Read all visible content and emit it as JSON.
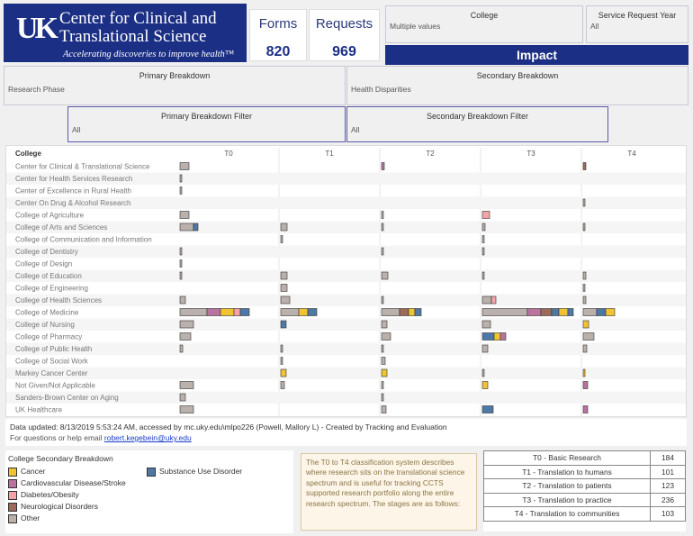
{
  "header": {
    "logo_mark": "UK",
    "title_line1": "Center for Clinical and",
    "title_line2": "Translational Science",
    "tagline": "Accelerating discoveries to improve health™",
    "forms_label": "Forms",
    "forms_value": "820",
    "requests_label": "Requests",
    "requests_value": "969",
    "impact_label": "Impact",
    "brand_color": "#1b2f84"
  },
  "filters": {
    "college": {
      "title": "College",
      "value": "Multiple values"
    },
    "service_year": {
      "title": "Service Request Year",
      "value": "All"
    },
    "primary_breakdown": {
      "title": "Primary Breakdown",
      "value": "Research Phase"
    },
    "secondary_breakdown": {
      "title": "Secondary Breakdown",
      "value": "Health Disparities"
    },
    "primary_filter": {
      "title": "Primary Breakdown Filter",
      "value": "All"
    },
    "secondary_filter": {
      "title": "Secondary Breakdown Filter",
      "value": "All"
    }
  },
  "chart_data": {
    "type": "bar",
    "row_header": "College",
    "columns": [
      "T0",
      "T1",
      "T2",
      "T3",
      "T4"
    ],
    "colleges": [
      "Center for Clinical & Translational Science",
      "Center for Health Services Research",
      "Center of Excellence in Rural Health",
      "Center On Drug & Alcohol Research",
      "College of Agriculture",
      "College of Arts and Sciences",
      "College of Communication and Information",
      "College of Dentistry",
      "College of Design",
      "College of Education",
      "College of Engineering",
      "College of Health Sciences",
      "College of Medicine",
      "College of Nursing",
      "College of Pharmacy",
      "College of Public Health",
      "College of Social Work",
      "Markey Cancer Center",
      "Not Given/Not Applicable",
      "Sanders-Brown Center on Aging",
      "UK Healthcare"
    ],
    "categories": [
      "Cancer",
      "Cardiovascular Disease/Stroke",
      "Diabetes/Obesity",
      "Neurological Disorders",
      "Other",
      "Substance Use Disorder"
    ],
    "colors": {
      "Cancer": "#f1c232",
      "Cardiovascular Disease/Stroke": "#b9739f",
      "Diabetes/Obesity": "#f4a3a8",
      "Neurological Disorders": "#9c6b5a",
      "Other": "#bab0ac",
      "Substance Use Disorder": "#4e79a7"
    },
    "data": {
      "T0": [
        [
          {
            "c": "Other",
            "v": 1
          }
        ],
        [
          {
            "c": "Other",
            "v": 0.2
          }
        ],
        [
          {
            "c": "Other",
            "v": 0.2
          }
        ],
        [],
        [
          {
            "c": "Other",
            "v": 1
          }
        ],
        [
          {
            "c": "Other",
            "v": 1.5
          },
          {
            "c": "Substance Use Disorder",
            "v": 0.5
          }
        ],
        [],
        [
          {
            "c": "Other",
            "v": 0.2
          }
        ],
        [
          {
            "c": "Other",
            "v": 0.2
          }
        ],
        [
          {
            "c": "Other",
            "v": 0.2
          }
        ],
        [],
        [
          {
            "c": "Other",
            "v": 0.6
          }
        ],
        [
          {
            "c": "Other",
            "v": 3
          },
          {
            "c": "Cardiovascular Disease/Stroke",
            "v": 1.5
          },
          {
            "c": "Cancer",
            "v": 1.5
          },
          {
            "c": "Diabetes/Obesity",
            "v": 0.7
          },
          {
            "c": "Substance Use Disorder",
            "v": 1
          }
        ],
        [
          {
            "c": "Other",
            "v": 1.5
          }
        ],
        [
          {
            "c": "Other",
            "v": 1.2
          }
        ],
        [
          {
            "c": "Other",
            "v": 0.3
          }
        ],
        [],
        [],
        [
          {
            "c": "Other",
            "v": 1.5
          }
        ],
        [
          {
            "c": "Other",
            "v": 0.6
          }
        ],
        [
          {
            "c": "Other",
            "v": 1.5
          }
        ]
      ],
      "T1": [
        [],
        [],
        [],
        [],
        [],
        [
          {
            "c": "Other",
            "v": 0.7
          }
        ],
        [
          {
            "c": "Other",
            "v": 0.2
          }
        ],
        [],
        [],
        [
          {
            "c": "Other",
            "v": 0.7
          }
        ],
        [
          {
            "c": "Other",
            "v": 0.7
          }
        ],
        [
          {
            "c": "Other",
            "v": 1
          }
        ],
        [
          {
            "c": "Other",
            "v": 2
          },
          {
            "c": "Cancer",
            "v": 1
          },
          {
            "c": "Substance Use Disorder",
            "v": 1
          }
        ],
        [
          {
            "c": "Substance Use Disorder",
            "v": 0.6
          }
        ],
        [],
        [
          {
            "c": "Other",
            "v": 0.2
          }
        ],
        [
          {
            "c": "Other",
            "v": 0.2
          }
        ],
        [
          {
            "c": "Cancer",
            "v": 0.6
          }
        ],
        [
          {
            "c": "Other",
            "v": 0.4
          }
        ],
        [],
        []
      ],
      "T2": [
        [
          {
            "c": "Cardiovascular Disease/Stroke",
            "v": 0.3
          }
        ],
        [],
        [],
        [],
        [
          {
            "c": "Other",
            "v": 0.2
          }
        ],
        [
          {
            "c": "Other",
            "v": 0.2
          }
        ],
        [],
        [
          {
            "c": "Other",
            "v": 0.2
          }
        ],
        [],
        [
          {
            "c": "Other",
            "v": 0.7
          }
        ],
        [],
        [
          {
            "c": "Other",
            "v": 0.2
          }
        ],
        [
          {
            "c": "Other",
            "v": 2
          },
          {
            "c": "Neurological Disorders",
            "v": 1
          },
          {
            "c": "Cancer",
            "v": 0.7
          },
          {
            "c": "Substance Use Disorder",
            "v": 0.7
          }
        ],
        [
          {
            "c": "Other",
            "v": 0.6
          }
        ],
        [
          {
            "c": "Other",
            "v": 1
          }
        ],
        [
          {
            "c": "Other",
            "v": 0.2
          }
        ],
        [
          {
            "c": "Other",
            "v": 0.4
          }
        ],
        [
          {
            "c": "Cancer",
            "v": 0.6
          }
        ],
        [
          {
            "c": "Other",
            "v": 0.2
          }
        ],
        [
          {
            "c": "Other",
            "v": 0.2
          }
        ],
        [
          {
            "c": "Other",
            "v": 0.5
          }
        ]
      ],
      "T3": [
        [],
        [],
        [],
        [],
        [
          {
            "c": "Diabetes/Obesity",
            "v": 0.8
          }
        ],
        [
          {
            "c": "Other",
            "v": 0.3
          }
        ],
        [
          {
            "c": "Other",
            "v": 0.2
          }
        ],
        [
          {
            "c": "Other",
            "v": 0.2
          }
        ],
        [],
        [
          {
            "c": "Other",
            "v": 0.2
          }
        ],
        [],
        [
          {
            "c": "Other",
            "v": 1
          },
          {
            "c": "Diabetes/Obesity",
            "v": 0.5
          }
        ],
        [
          {
            "c": "Other",
            "v": 5
          },
          {
            "c": "Cardiovascular Disease/Stroke",
            "v": 1.5
          },
          {
            "c": "Neurological Disorders",
            "v": 1.2
          },
          {
            "c": "Substance Use Disorder",
            "v": 0.8
          },
          {
            "c": "Cancer",
            "v": 1
          },
          {
            "c": "Substance Use Disorder",
            "v": 0.6
          }
        ],
        [
          {
            "c": "Other",
            "v": 0.9
          }
        ],
        [
          {
            "c": "Substance Use Disorder",
            "v": 1.3
          },
          {
            "c": "Cancer",
            "v": 0.7
          },
          {
            "c": "Cardiovascular Disease/Stroke",
            "v": 0.6
          }
        ],
        [
          {
            "c": "Other",
            "v": 0.6
          }
        ],
        [],
        [
          {
            "c": "Other",
            "v": 0.2
          }
        ],
        [
          {
            "c": "Cancer",
            "v": 0.6
          }
        ],
        [],
        [
          {
            "c": "Substance Use Disorder",
            "v": 1.2
          }
        ]
      ],
      "T4": [
        [
          {
            "c": "Neurological Disorders",
            "v": 0.3
          }
        ],
        [],
        [],
        [
          {
            "c": "Other",
            "v": 0.2
          }
        ],
        [],
        [
          {
            "c": "Other",
            "v": 0.2
          }
        ],
        [],
        [],
        [],
        [
          {
            "c": "Other",
            "v": 0.3
          }
        ],
        [
          {
            "c": "Other",
            "v": 0.2
          }
        ],
        [
          {
            "c": "Other",
            "v": 0.3
          }
        ],
        [
          {
            "c": "Other",
            "v": 1.5
          },
          {
            "c": "Substance Use Disorder",
            "v": 1
          },
          {
            "c": "Cancer",
            "v": 1
          }
        ],
        [
          {
            "c": "Cancer",
            "v": 0.6
          }
        ],
        [
          {
            "c": "Other",
            "v": 1.2
          }
        ],
        [
          {
            "c": "Other",
            "v": 0.4
          }
        ],
        [],
        [
          {
            "c": "Cancer",
            "v": 0.2
          }
        ],
        [
          {
            "c": "Cardiovascular Disease/Stroke",
            "v": 0.5
          }
        ],
        [],
        [
          {
            "c": "Cardiovascular Disease/Stroke",
            "v": 0.5
          }
        ]
      ]
    }
  },
  "footer": {
    "line1": "Data updated: 8/13/2019 5:53:24 AM, accessed by mc.uky.edu\\mlpo226 (Powell, Mallory L) - Created by Tracking and Evaluation",
    "line2_prefix": "For questions or help email ",
    "email": "robert.kegebein@uky.edu"
  },
  "legend": {
    "title": "College Secondary Breakdown",
    "items": [
      {
        "label": "Cancer",
        "color": "#f1c232"
      },
      {
        "label": "Cardiovascular Disease/Stroke",
        "color": "#b9739f"
      },
      {
        "label": "Diabetes/Obesity",
        "color": "#f4a3a8"
      },
      {
        "label": "Neurological Disorders",
        "color": "#9c6b5a"
      },
      {
        "label": "Other",
        "color": "#bab0ac"
      },
      {
        "label": "Substance Use Disorder",
        "color": "#4e79a7"
      }
    ]
  },
  "description": "The T0 to T4 classification system describes where research sits on the translational science spectrum and is useful for tracking CCTS supported research portfolio along the entire research spectrum. The stages are as follows:",
  "phase_table": [
    {
      "label": "T0 - Basic Research",
      "count": "184"
    },
    {
      "label": "T1 - Translation to humans",
      "count": "101"
    },
    {
      "label": "T2 - Translation to patients",
      "count": "123"
    },
    {
      "label": "T3 - Translation to practice",
      "count": "236"
    },
    {
      "label": "T4 - Translation to communities",
      "count": "103"
    }
  ]
}
